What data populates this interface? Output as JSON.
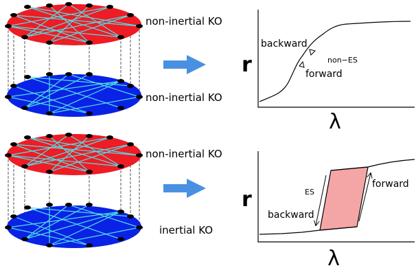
{
  "colors": {
    "red_layer": "#ee1c25",
    "blue_layer": "#0a22e6",
    "link": "#4fe0e6",
    "node": "#000000",
    "arrow": "#4a90e2",
    "hysteresis_fill": "#f4a6a6"
  },
  "top_panel": {
    "upper_layer_label": "non-inertial KO",
    "lower_layer_label": "non-inertial KO",
    "plot": {
      "y_axis_label": "r",
      "x_axis_label": "λ",
      "backward_label": "backward",
      "forward_label": "forward",
      "regime_label": "non−ES"
    }
  },
  "bottom_panel": {
    "upper_layer_label": "non-inertial KO",
    "lower_layer_label": "inertial KO",
    "plot": {
      "y_axis_label": "r",
      "x_axis_label": "λ",
      "backward_label": "backward",
      "forward_label": "forward",
      "regime_label": "ES"
    }
  }
}
